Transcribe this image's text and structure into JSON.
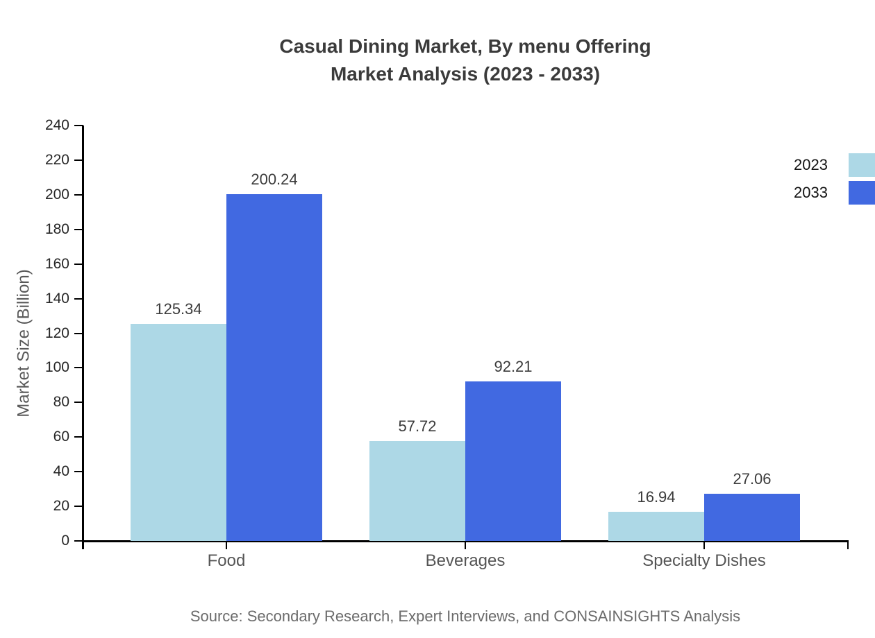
{
  "chart": {
    "title_line1": "Casual Dining Market, By menu Offering",
    "title_line2": "Market Analysis (2023 - 2033)",
    "ylabel": "Market Size (Billion)",
    "source": "Source: Secondary Research, Expert Interviews, and CONSAINSIGHTS Analysis"
  },
  "chart_data": {
    "type": "bar",
    "title": "Casual Dining Market, By menu Offering Market Analysis (2023 - 2033)",
    "categories": [
      "Food",
      "Beverages",
      "Specialty Dishes"
    ],
    "series": [
      {
        "name": "2023",
        "color": "#ADD8E6",
        "values": [
          125.34,
          57.72,
          16.94
        ]
      },
      {
        "name": "2033",
        "color": "#4169E1",
        "values": [
          200.24,
          92.21,
          27.06
        ]
      }
    ],
    "xlabel": "",
    "ylabel": "Market Size (Billion)",
    "ylim": [
      0,
      240
    ],
    "ytick_step": 20,
    "grid": false,
    "legend_position": "right-edge",
    "value_labels": true,
    "value_label_format": "0.00"
  }
}
